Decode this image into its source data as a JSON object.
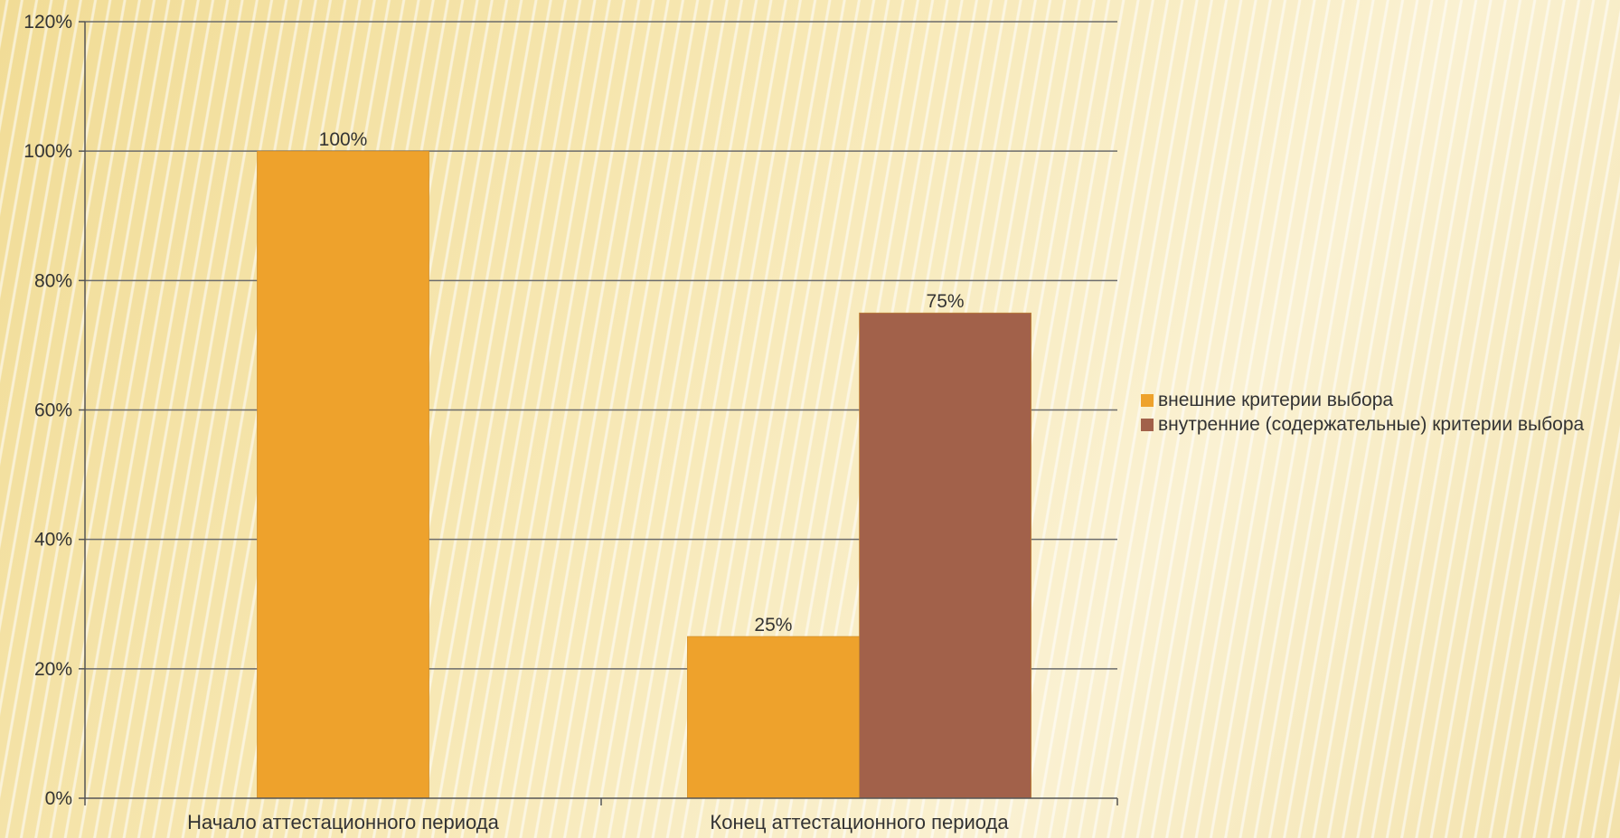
{
  "chart_data": {
    "type": "bar",
    "categories": [
      "Начало аттестационного периода",
      "Конец аттестационного периода"
    ],
    "series": [
      {
        "name": "внешние критерии выбора",
        "values": [
          100,
          25
        ],
        "value_labels": [
          "100%",
          "25%"
        ],
        "color": "#eea22c"
      },
      {
        "name": "внутренние (содержательные) критерии выбора",
        "values": [
          null,
          75
        ],
        "value_labels": [
          "",
          "75%"
        ],
        "color": "#a2614a"
      }
    ],
    "y_ticks": [
      "0%",
      "20%",
      "40%",
      "60%",
      "80%",
      "100%",
      "120%"
    ],
    "ylim": [
      0,
      120
    ],
    "grid": true,
    "legend_position": "right",
    "title": "",
    "xlabel": "",
    "ylabel": ""
  }
}
